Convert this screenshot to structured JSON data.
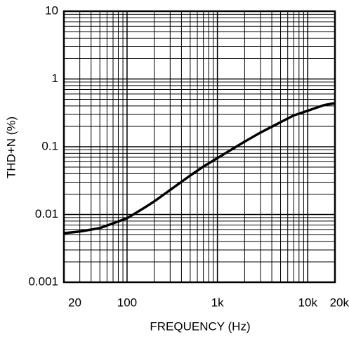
{
  "chart_data": {
    "type": "line",
    "x_label": "FREQUENCY (Hz)",
    "y_label": "THD+N (%)",
    "x": [
      20,
      30,
      50,
      70,
      100,
      150,
      200,
      300,
      500,
      700,
      1000,
      2000,
      3000,
      5000,
      7000,
      10000,
      15000,
      20000
    ],
    "series": [
      {
        "color": "#000000",
        "values": [
          0.0053,
          0.0056,
          0.0063,
          0.0074,
          0.0088,
          0.0122,
          0.0156,
          0.023,
          0.0376,
          0.051,
          0.068,
          0.119,
          0.162,
          0.23,
          0.29,
          0.34,
          0.41,
          0.44
        ]
      }
    ],
    "xlim": [
      20,
      20000
    ],
    "ylim": [
      0.001,
      10
    ],
    "xticks": [
      20,
      100,
      {
        "value": 1000,
        "label": "1k"
      },
      {
        "value": 10000,
        "label": "10k"
      },
      {
        "value": 20000,
        "label": "20k"
      }
    ],
    "yticks": [
      0.001,
      0.01,
      0.1,
      1,
      10
    ],
    "xscale": "log",
    "yscale": "log",
    "grid": true
  }
}
